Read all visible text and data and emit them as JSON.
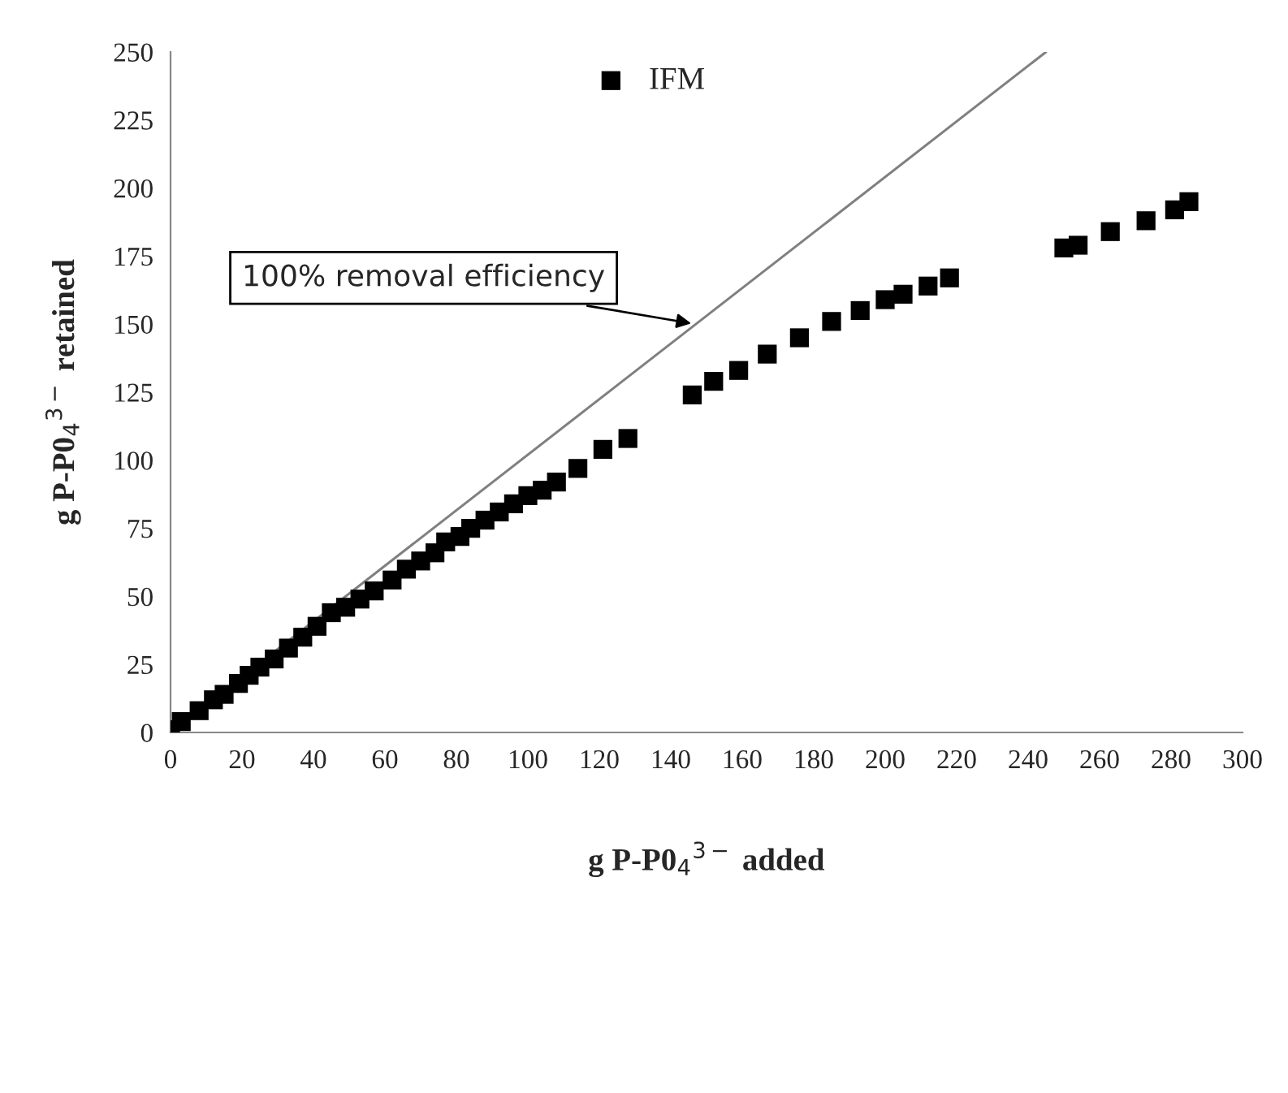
{
  "chart_data": {
    "type": "scatter",
    "xlabel": "g P-P0$_{4}$$^{3−}$ added",
    "ylabel": "g P-P0$_{4}$$^{3−}$ retained",
    "series": [
      {
        "name": "IFM",
        "color": "#000000",
        "marker": "square",
        "x": [
          0,
          3,
          8,
          12,
          15,
          19,
          22,
          25,
          29,
          33,
          37,
          41,
          45,
          49,
          53,
          57,
          62,
          66,
          70,
          74,
          77,
          81,
          84,
          88,
          92,
          96,
          100,
          104,
          108,
          114,
          121,
          128,
          146,
          152,
          159,
          167,
          176,
          185,
          193,
          200,
          205,
          212,
          218,
          250,
          254,
          263,
          273,
          281,
          285
        ],
        "values": [
          1,
          4,
          8,
          12,
          14,
          18,
          21,
          24,
          27,
          31,
          35,
          39,
          44,
          46,
          49,
          52,
          56,
          60,
          63,
          66,
          70,
          72,
          75,
          78,
          81,
          84,
          87,
          89,
          92,
          97,
          104,
          108,
          124,
          129,
          133,
          139,
          145,
          151,
          155,
          159,
          161,
          164,
          167,
          178,
          179,
          184,
          188,
          192,
          195
        ]
      },
      {
        "type": "line",
        "color": "#808080",
        "x": [
          0,
          245
        ],
        "values": [
          0,
          250
        ]
      }
    ],
    "annotations": [
      {
        "text": "100% removal efficiency",
        "x": 147,
        "y": 150
      }
    ],
    "xlim": [
      0,
      300
    ],
    "xticks": [
      0,
      20,
      40,
      60,
      80,
      100,
      120,
      140,
      160,
      180,
      200,
      220,
      240,
      260,
      280,
      300
    ],
    "ylim": [
      0,
      250
    ],
    "yticks": [
      0,
      25,
      50,
      75,
      100,
      125,
      150,
      175,
      200,
      225,
      250
    ],
    "grid": false,
    "legend": "top"
  }
}
